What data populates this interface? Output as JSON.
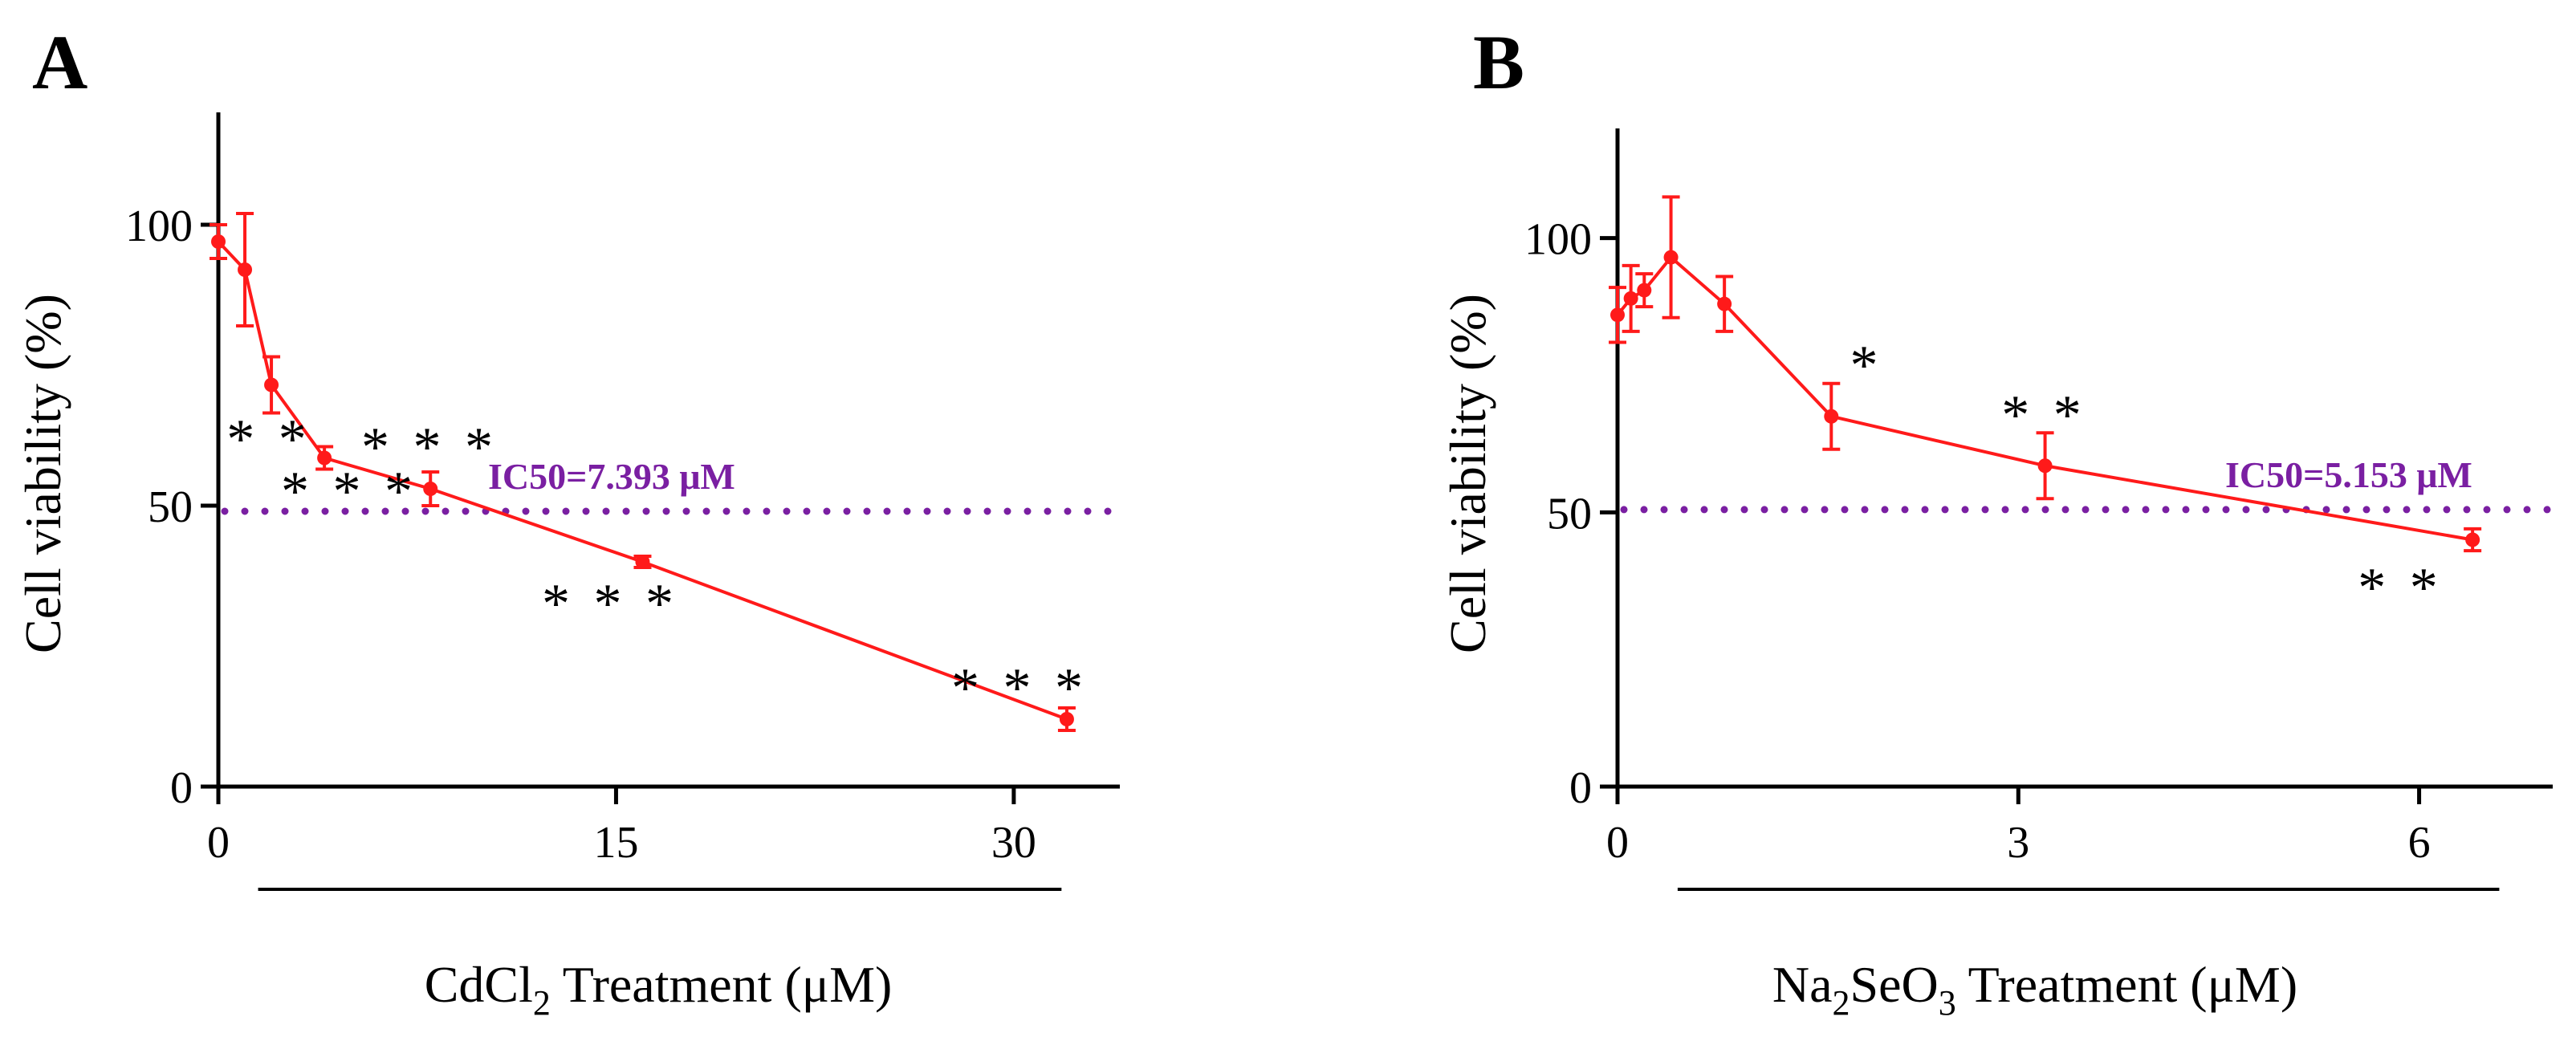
{
  "colors": {
    "series": "#ff1a1a",
    "threshold": "#7a1fa2",
    "axis": "#000000"
  },
  "chart_data": [
    {
      "type": "line",
      "panel_label": "A",
      "ylabel": "Cell viability (%)",
      "xlabel_prefix": "CdCl",
      "xlabel_sub": "2",
      "xlabel_suffix": " Treatment  (μM)",
      "xlim": [
        0,
        34
      ],
      "ylim": [
        0,
        120
      ],
      "x_ticks": [
        0,
        15,
        30
      ],
      "x_tick_labels": [
        "0",
        "15",
        "30"
      ],
      "y_ticks": [
        0,
        50,
        100
      ],
      "y_tick_labels": [
        "0",
        "50",
        "100"
      ],
      "underline_range": [
        1.5,
        31.8
      ],
      "series": [
        {
          "name": "CdCl2",
          "x": [
            0,
            1,
            2,
            4,
            8,
            16,
            32
          ],
          "y": [
            97,
            92,
            71.5,
            58.5,
            53,
            40,
            12
          ],
          "err": [
            3,
            10,
            5,
            2,
            3,
            1,
            2
          ],
          "sig": [
            "",
            "",
            "**",
            "***",
            "***",
            "***",
            "***"
          ]
        }
      ],
      "threshold": {
        "y": 49,
        "label": "IC50=7.393 μM"
      }
    },
    {
      "type": "line",
      "panel_label": "B",
      "ylabel": "Cell viability (%)",
      "xlabel_prefix": "Na",
      "xlabel_sub": "2",
      "xlabel_middle": "SeO",
      "xlabel_sub2": "3",
      "xlabel_suffix": " Treatment  (μM)",
      "xlim": [
        0,
        7
      ],
      "ylim": [
        0,
        120
      ],
      "x_ticks": [
        0,
        3,
        6
      ],
      "x_tick_labels": [
        "0",
        "3",
        "6"
      ],
      "y_ticks": [
        0,
        50,
        100
      ],
      "y_tick_labels": [
        "0",
        "50",
        "100"
      ],
      "underline_range": [
        0.45,
        6.6
      ],
      "series": [
        {
          "name": "Na2SeO3",
          "x": [
            0,
            0.1,
            0.2,
            0.4,
            0.8,
            1.6,
            3.2,
            6.4
          ],
          "y": [
            86,
            89,
            90.5,
            96.5,
            88,
            67.5,
            58.5,
            45
          ],
          "err": [
            5,
            6,
            3,
            11,
            5,
            6,
            6,
            2
          ],
          "sig": [
            "",
            "",
            "",
            "",
            "",
            "*",
            "**",
            "**"
          ]
        }
      ],
      "threshold": {
        "y": 50.5,
        "label": "IC50=5.153 μM"
      }
    }
  ]
}
